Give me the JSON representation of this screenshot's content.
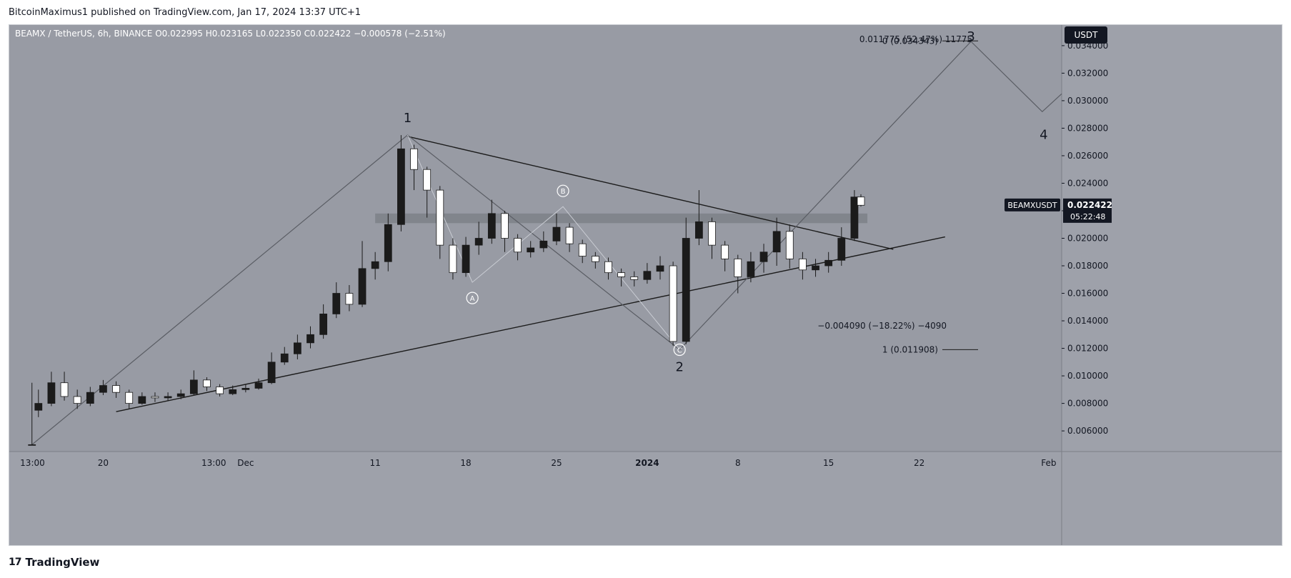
{
  "header": {
    "attribution": "BitcoinMaximus1 published on TradingView.com, Jan 17, 2024 13:37 UTC+1"
  },
  "footer": {
    "brand": "TradingView",
    "logo_glyph": "17"
  },
  "colors": {
    "background": "#989ba4",
    "candle": "#1b1b1b",
    "axis_bg": "#9ea1aa",
    "resistance_band": "#6f7278",
    "accent": "#131722"
  },
  "legend": {
    "symbol": "BEAMX / TetherUS, 6h, BINANCE",
    "o_label": "O",
    "o_value": "0.022995",
    "h_label": "H",
    "h_value": "0.023165",
    "l_label": "L",
    "l_value": "0.022350",
    "c_label": "C",
    "c_value": "0.022422",
    "change": "−0.000578 (−2.51%)"
  },
  "price_axis": {
    "currency": "USDT",
    "ticks": [
      "0.034000",
      "0.032000",
      "0.030000",
      "0.028000",
      "0.026000",
      "0.024000",
      "0.022000",
      "0.020000",
      "0.018000",
      "0.016000",
      "0.014000",
      "0.012000",
      "0.010000",
      "0.008000",
      "0.006000"
    ],
    "tick_values": [
      0.034,
      0.032,
      0.03,
      0.028,
      0.026,
      0.024,
      0.022,
      0.02,
      0.018,
      0.016,
      0.014,
      0.012,
      0.01,
      0.008,
      0.006
    ],
    "symbol_tag": "BEAMXUSDT",
    "last_price": "0.022422",
    "countdown": "05:22:48"
  },
  "time_axis": {
    "ticks": [
      "13:00",
      "20",
      "13:00",
      "Dec",
      "11",
      "18",
      "25",
      "2024",
      "8",
      "15",
      "22",
      "Feb"
    ],
    "tick_dates": [
      "2023-11-14T13:00",
      "2023-11-20",
      "2023-11-28T13:00",
      "2023-12-01",
      "2023-12-11",
      "2023-12-18",
      "2023-12-25",
      "2024-01-01",
      "2024-01-08",
      "2024-01-15",
      "2024-01-22",
      "2024-02-01"
    ]
  },
  "annotations": {
    "fib_range_top": "0.011775 (52.47%) 11775",
    "fib_0": "0 (0.034343)",
    "fib_1": "1 (0.011908)",
    "measure_bottom": "−0.004090 (−18.22%) −4090",
    "wave_1": "1",
    "wave_2": "2",
    "wave_3": "3",
    "wave_4": "4",
    "wave_A": "A",
    "wave_B": "B",
    "wave_C": "C"
  },
  "chart_data": {
    "type": "candlestick",
    "title": "BEAMX / TetherUS, 6h, BINANCE",
    "xlabel": "",
    "ylabel": "",
    "ylim": [
      0.0045,
      0.0355
    ],
    "xlim": [
      "2023-11-12T18:00",
      "2024-02-02"
    ],
    "grid": false,
    "candle_points": [
      [
        "2023-11-14T12:00",
        0.005,
        0.005,
        0.0095,
        0.005
      ],
      [
        "2023-11-15",
        0.0075,
        0.008,
        0.009,
        0.007
      ],
      [
        "2023-11-16",
        0.008,
        0.0095,
        0.0103,
        0.0078
      ],
      [
        "2023-11-17",
        0.0095,
        0.0085,
        0.0103,
        0.0082
      ],
      [
        "2023-11-18",
        0.0085,
        0.008,
        0.009,
        0.0076
      ],
      [
        "2023-11-19",
        0.008,
        0.0088,
        0.0092,
        0.0078
      ],
      [
        "2023-11-20",
        0.0088,
        0.0093,
        0.0097,
        0.0086
      ],
      [
        "2023-11-21",
        0.0093,
        0.0088,
        0.0096,
        0.0084
      ],
      [
        "2023-11-22",
        0.0088,
        0.008,
        0.009,
        0.0076
      ],
      [
        "2023-11-23",
        0.008,
        0.0085,
        0.0088,
        0.0079
      ],
      [
        "2023-11-24",
        0.0085,
        0.0084,
        0.0088,
        0.0081
      ],
      [
        "2023-11-25",
        0.0084,
        0.0085,
        0.0088,
        0.0082
      ],
      [
        "2023-11-26",
        0.0085,
        0.0087,
        0.009,
        0.0083
      ],
      [
        "2023-11-27",
        0.0087,
        0.0097,
        0.0104,
        0.0086
      ],
      [
        "2023-11-28",
        0.0097,
        0.0092,
        0.0099,
        0.0089
      ],
      [
        "2023-11-29",
        0.0092,
        0.0087,
        0.0094,
        0.0085
      ],
      [
        "2023-11-30",
        0.0087,
        0.009,
        0.0093,
        0.0086
      ],
      [
        "2023-12-01",
        0.009,
        0.0091,
        0.0094,
        0.0088
      ],
      [
        "2023-12-02",
        0.0091,
        0.0095,
        0.0098,
        0.009
      ],
      [
        "2023-12-03",
        0.0095,
        0.011,
        0.0117,
        0.0094
      ],
      [
        "2023-12-04",
        0.011,
        0.0116,
        0.0121,
        0.0108
      ],
      [
        "2023-12-05",
        0.0116,
        0.0124,
        0.013,
        0.0112
      ],
      [
        "2023-12-06",
        0.0124,
        0.013,
        0.0136,
        0.012
      ],
      [
        "2023-12-07",
        0.013,
        0.0145,
        0.0152,
        0.0127
      ],
      [
        "2023-12-08",
        0.0145,
        0.016,
        0.0168,
        0.0142
      ],
      [
        "2023-12-09",
        0.016,
        0.0152,
        0.0166,
        0.0147
      ],
      [
        "2023-12-10",
        0.0152,
        0.0178,
        0.0198,
        0.015
      ],
      [
        "2023-12-11",
        0.0178,
        0.0183,
        0.019,
        0.017
      ],
      [
        "2023-12-12",
        0.0183,
        0.021,
        0.0218,
        0.0176
      ],
      [
        "2023-12-13",
        0.021,
        0.0265,
        0.0275,
        0.0205
      ],
      [
        "2023-12-14",
        0.0265,
        0.025,
        0.0268,
        0.0235
      ],
      [
        "2023-12-15",
        0.025,
        0.0235,
        0.0252,
        0.0215
      ],
      [
        "2023-12-16",
        0.0235,
        0.0195,
        0.0238,
        0.0185
      ],
      [
        "2023-12-17",
        0.0195,
        0.0175,
        0.02,
        0.017
      ],
      [
        "2023-12-18",
        0.0175,
        0.0195,
        0.0201,
        0.0172
      ],
      [
        "2023-12-19",
        0.0195,
        0.02,
        0.0212,
        0.0188
      ],
      [
        "2023-12-20",
        0.02,
        0.0218,
        0.0228,
        0.0196
      ],
      [
        "2023-12-21",
        0.0218,
        0.02,
        0.022,
        0.019
      ],
      [
        "2023-12-22",
        0.02,
        0.019,
        0.0203,
        0.0184
      ],
      [
        "2023-12-23",
        0.019,
        0.0193,
        0.0198,
        0.0186
      ],
      [
        "2023-12-24",
        0.0193,
        0.0198,
        0.0205,
        0.019
      ],
      [
        "2023-12-25",
        0.0198,
        0.0208,
        0.0218,
        0.0195
      ],
      [
        "2023-12-26",
        0.0208,
        0.0196,
        0.0211,
        0.019
      ],
      [
        "2023-12-27",
        0.0196,
        0.0187,
        0.0199,
        0.0182
      ],
      [
        "2023-12-28",
        0.0187,
        0.0183,
        0.019,
        0.0178
      ],
      [
        "2023-12-29",
        0.0183,
        0.0175,
        0.0186,
        0.017
      ],
      [
        "2023-12-30",
        0.0175,
        0.0172,
        0.0178,
        0.0165
      ],
      [
        "2023-12-31",
        0.0172,
        0.017,
        0.0176,
        0.0165
      ],
      [
        "2024-01-01",
        0.017,
        0.0176,
        0.0182,
        0.0167
      ],
      [
        "2024-01-02",
        0.0176,
        0.018,
        0.0187,
        0.017
      ],
      [
        "2024-01-03",
        0.018,
        0.0125,
        0.0183,
        0.0122
      ],
      [
        "2024-01-04",
        0.0125,
        0.02,
        0.0215,
        0.0123
      ],
      [
        "2024-01-05",
        0.02,
        0.0212,
        0.0235,
        0.0195
      ],
      [
        "2024-01-06",
        0.0212,
        0.0195,
        0.0215,
        0.0185
      ],
      [
        "2024-01-07",
        0.0195,
        0.0185,
        0.0198,
        0.0176
      ],
      [
        "2024-01-08",
        0.0185,
        0.0172,
        0.0188,
        0.016
      ],
      [
        "2024-01-09",
        0.0172,
        0.0183,
        0.019,
        0.0168
      ],
      [
        "2024-01-10",
        0.0183,
        0.019,
        0.0196,
        0.0175
      ],
      [
        "2024-01-11",
        0.019,
        0.0205,
        0.0215,
        0.018
      ],
      [
        "2024-01-12",
        0.0205,
        0.0185,
        0.021,
        0.0178
      ],
      [
        "2024-01-13",
        0.0185,
        0.0177,
        0.019,
        0.017
      ],
      [
        "2024-01-14",
        0.0177,
        0.018,
        0.0185,
        0.0172
      ],
      [
        "2024-01-15",
        0.018,
        0.0184,
        0.019,
        0.0175
      ],
      [
        "2024-01-16",
        0.0184,
        0.02,
        0.0208,
        0.018
      ],
      [
        "2024-01-17",
        0.02,
        0.023,
        0.0235,
        0.0198
      ],
      [
        "2024-01-17T12:00",
        0.023,
        0.0224,
        0.0232,
        0.0223
      ]
    ],
    "candle_fields": [
      "time",
      "open",
      "close",
      "high",
      "low"
    ],
    "wave_path": [
      [
        "2023-11-14T12:00",
        0.005
      ],
      [
        "2023-12-13T12:00",
        0.0275
      ],
      [
        "2024-01-03T12:00",
        0.0119
      ],
      [
        "2024-01-26",
        0.0343
      ],
      [
        "2024-01-31T12:00",
        0.0292
      ],
      [
        "2024-02-02",
        0.0305
      ]
    ],
    "abc_path": [
      [
        "2023-12-13T12:00",
        0.0275
      ],
      [
        "2023-12-18T12:00",
        0.0168
      ],
      [
        "2023-12-25T12:00",
        0.0223
      ],
      [
        "2024-01-03T12:00",
        0.0119
      ]
    ],
    "triangle_upper": [
      [
        "2023-12-13T12:00",
        0.0274
      ],
      [
        "2024-01-20",
        0.0192
      ]
    ],
    "triangle_lower": [
      [
        "2023-11-21",
        0.0074
      ],
      [
        "2024-01-24",
        0.0201
      ]
    ],
    "resistance_zone": {
      "from": "2023-12-11",
      "to": "2024-01-18",
      "low": 0.0211,
      "high": 0.0218
    },
    "fib_levels": [
      {
        "label_key": "fib_0",
        "value": 0.034343
      },
      {
        "label_key": "fib_1",
        "value": 0.011908
      }
    ]
  }
}
